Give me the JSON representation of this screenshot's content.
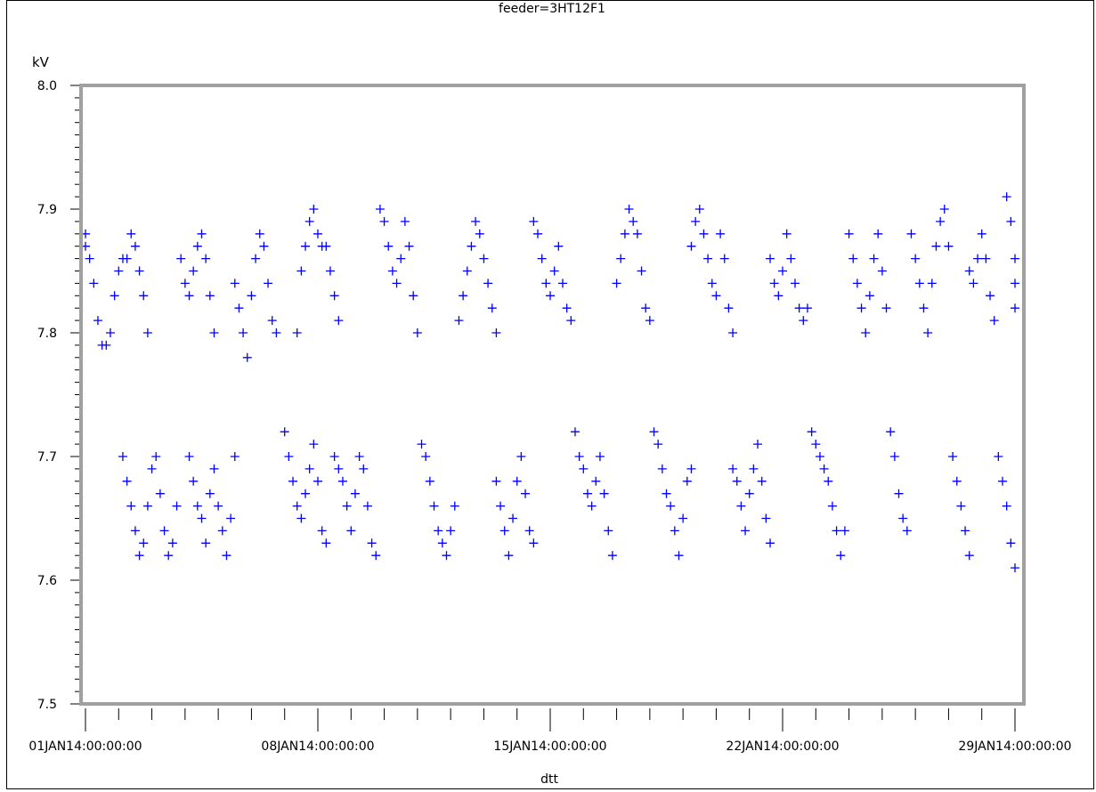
{
  "chart_data": {
    "type": "scatter",
    "title": "feeder=3HT12F1",
    "xlabel": "dtt",
    "ylabel": "kV",
    "ylim": [
      7.5,
      8.0
    ],
    "xlim": [
      "01JAN14:00:00:00",
      "29JAN14:00:00:00"
    ],
    "y_ticks": [
      "7.5",
      "7.6",
      "7.7",
      "7.8",
      "7.9",
      "8.0"
    ],
    "x_tick_labels": [
      "01JAN14:00:00:00",
      "08JAN14:00:00:00",
      "15JAN14:00:00:00",
      "22JAN14:00:00:00",
      "29JAN14:00:00:00"
    ],
    "marker": "+",
    "marker_color": "#0000ff",
    "frame_color": "#a0a0a0",
    "grid": false,
    "series": [
      {
        "points": [
          [
            "01JAN14:00:00:00",
            7.88
          ],
          [
            "01JAN14:00:00:00",
            7.87
          ],
          [
            "01JAN14:03:00:00",
            7.86
          ],
          [
            "01JAN14:06:00:00",
            7.84
          ],
          [
            "01JAN14:09:00:00",
            7.81
          ],
          [
            "01JAN14:12:00:00",
            7.79
          ],
          [
            "01JAN14:15:00:00",
            7.79
          ],
          [
            "01JAN14:18:00:00",
            7.8
          ],
          [
            "01JAN14:21:00:00",
            7.83
          ],
          [
            "02JAN14:00:00:00",
            7.85
          ],
          [
            "02JAN14:03:00:00",
            7.86
          ],
          [
            "02JAN14:06:00:00",
            7.86
          ],
          [
            "02JAN14:09:00:00",
            7.88
          ],
          [
            "02JAN14:12:00:00",
            7.87
          ],
          [
            "02JAN14:15:00:00",
            7.85
          ],
          [
            "02JAN14:18:00:00",
            7.83
          ],
          [
            "02JAN14:21:00:00",
            7.8
          ],
          [
            "02JAN14:03:00:00",
            7.7
          ],
          [
            "02JAN14:06:00:00",
            7.68
          ],
          [
            "02JAN14:09:00:00",
            7.66
          ],
          [
            "02JAN14:12:00:00",
            7.64
          ],
          [
            "02JAN14:15:00:00",
            7.62
          ],
          [
            "02JAN14:18:00:00",
            7.63
          ],
          [
            "02JAN14:21:00:00",
            7.66
          ],
          [
            "03JAN14:00:00:00",
            7.69
          ],
          [
            "03JAN14:03:00:00",
            7.7
          ],
          [
            "03JAN14:06:00:00",
            7.67
          ],
          [
            "03JAN14:09:00:00",
            7.64
          ],
          [
            "03JAN14:12:00:00",
            7.62
          ],
          [
            "03JAN14:15:00:00",
            7.63
          ],
          [
            "03JAN14:18:00:00",
            7.66
          ],
          [
            "03JAN14:21:00:00",
            7.86
          ],
          [
            "04JAN14:00:00:00",
            7.84
          ],
          [
            "04JAN14:03:00:00",
            7.83
          ],
          [
            "04JAN14:06:00:00",
            7.85
          ],
          [
            "04JAN14:09:00:00",
            7.87
          ],
          [
            "04JAN14:12:00:00",
            7.88
          ],
          [
            "04JAN14:15:00:00",
            7.86
          ],
          [
            "04JAN14:18:00:00",
            7.83
          ],
          [
            "04JAN14:21:00:00",
            7.8
          ],
          [
            "04JAN14:03:00:00",
            7.7
          ],
          [
            "04JAN14:06:00:00",
            7.68
          ],
          [
            "04JAN14:09:00:00",
            7.66
          ],
          [
            "04JAN14:12:00:00",
            7.65
          ],
          [
            "04JAN14:15:00:00",
            7.63
          ],
          [
            "04JAN14:18:00:00",
            7.67
          ],
          [
            "04JAN14:21:00:00",
            7.69
          ],
          [
            "05JAN14:00:00:00",
            7.66
          ],
          [
            "05JAN14:03:00:00",
            7.64
          ],
          [
            "05JAN14:06:00:00",
            7.62
          ],
          [
            "05JAN14:09:00:00",
            7.65
          ],
          [
            "05JAN14:12:00:00",
            7.7
          ],
          [
            "05JAN14:12:00:00",
            7.84
          ],
          [
            "05JAN14:15:00:00",
            7.82
          ],
          [
            "05JAN14:18:00:00",
            7.8
          ],
          [
            "05JAN14:21:00:00",
            7.78
          ],
          [
            "06JAN14:00:00:00",
            7.83
          ],
          [
            "06JAN14:03:00:00",
            7.86
          ],
          [
            "06JAN14:06:00:00",
            7.88
          ],
          [
            "06JAN14:09:00:00",
            7.87
          ],
          [
            "06JAN14:12:00:00",
            7.84
          ],
          [
            "06JAN14:15:00:00",
            7.81
          ],
          [
            "06JAN14:18:00:00",
            7.8
          ],
          [
            "07JAN14:00:00:00",
            7.72
          ],
          [
            "07JAN14:03:00:00",
            7.7
          ],
          [
            "07JAN14:06:00:00",
            7.68
          ],
          [
            "07JAN14:09:00:00",
            7.66
          ],
          [
            "07JAN14:12:00:00",
            7.65
          ],
          [
            "07JAN14:15:00:00",
            7.67
          ],
          [
            "07JAN14:18:00:00",
            7.69
          ],
          [
            "07JAN14:21:00:00",
            7.71
          ],
          [
            "08JAN14:00:00:00",
            7.68
          ],
          [
            "08JAN14:03:00:00",
            7.64
          ],
          [
            "08JAN14:06:00:00",
            7.63
          ],
          [
            "07JAN14:09:00:00",
            7.8
          ],
          [
            "07JAN14:12:00:00",
            7.85
          ],
          [
            "07JAN14:15:00:00",
            7.87
          ],
          [
            "07JAN14:18:00:00",
            7.89
          ],
          [
            "07JAN14:21:00:00",
            7.9
          ],
          [
            "08JAN14:00:00:00",
            7.88
          ],
          [
            "08JAN14:03:00:00",
            7.87
          ],
          [
            "08JAN14:06:00:00",
            7.87
          ],
          [
            "08JAN14:09:00:00",
            7.85
          ],
          [
            "08JAN14:12:00:00",
            7.83
          ],
          [
            "08JAN14:15:00:00",
            7.81
          ],
          [
            "08JAN14:12:00:00",
            7.7
          ],
          [
            "08JAN14:15:00:00",
            7.69
          ],
          [
            "08JAN14:18:00:00",
            7.68
          ],
          [
            "08JAN14:21:00:00",
            7.66
          ],
          [
            "09JAN14:00:00:00",
            7.64
          ],
          [
            "09JAN14:03:00:00",
            7.67
          ],
          [
            "09JAN14:06:00:00",
            7.7
          ],
          [
            "09JAN14:09:00:00",
            7.69
          ],
          [
            "09JAN14:12:00:00",
            7.66
          ],
          [
            "09JAN14:15:00:00",
            7.63
          ],
          [
            "09JAN14:18:00:00",
            7.62
          ],
          [
            "09JAN14:21:00:00",
            7.9
          ],
          [
            "10JAN14:00:00:00",
            7.89
          ],
          [
            "10JAN14:03:00:00",
            7.87
          ],
          [
            "10JAN14:06:00:00",
            7.85
          ],
          [
            "10JAN14:09:00:00",
            7.84
          ],
          [
            "10JAN14:12:00:00",
            7.86
          ],
          [
            "10JAN14:15:00:00",
            7.89
          ],
          [
            "10JAN14:18:00:00",
            7.87
          ],
          [
            "10JAN14:21:00:00",
            7.83
          ],
          [
            "11JAN14:00:00:00",
            7.8
          ],
          [
            "11JAN14:03:00:00",
            7.71
          ],
          [
            "11JAN14:06:00:00",
            7.7
          ],
          [
            "11JAN14:09:00:00",
            7.68
          ],
          [
            "11JAN14:12:00:00",
            7.66
          ],
          [
            "11JAN14:15:00:00",
            7.64
          ],
          [
            "11JAN14:18:00:00",
            7.63
          ],
          [
            "11JAN14:21:00:00",
            7.62
          ],
          [
            "12JAN14:00:00:00",
            7.64
          ],
          [
            "12JAN14:03:00:00",
            7.66
          ],
          [
            "12JAN14:06:00:00",
            7.81
          ],
          [
            "12JAN14:09:00:00",
            7.83
          ],
          [
            "12JAN14:12:00:00",
            7.85
          ],
          [
            "12JAN14:15:00:00",
            7.87
          ],
          [
            "12JAN14:18:00:00",
            7.89
          ],
          [
            "12JAN14:21:00:00",
            7.88
          ],
          [
            "13JAN14:00:00:00",
            7.86
          ],
          [
            "13JAN14:03:00:00",
            7.84
          ],
          [
            "13JAN14:06:00:00",
            7.82
          ],
          [
            "13JAN14:09:00:00",
            7.8
          ],
          [
            "13JAN14:09:00:00",
            7.68
          ],
          [
            "13JAN14:12:00:00",
            7.66
          ],
          [
            "13JAN14:15:00:00",
            7.64
          ],
          [
            "13JAN14:18:00:00",
            7.62
          ],
          [
            "13JAN14:21:00:00",
            7.65
          ],
          [
            "14JAN14:00:00:00",
            7.68
          ],
          [
            "14JAN14:03:00:00",
            7.7
          ],
          [
            "14JAN14:06:00:00",
            7.67
          ],
          [
            "14JAN14:09:00:00",
            7.64
          ],
          [
            "14JAN14:12:00:00",
            7.63
          ],
          [
            "14JAN14:12:00:00",
            7.89
          ],
          [
            "14JAN14:15:00:00",
            7.88
          ],
          [
            "14JAN14:18:00:00",
            7.86
          ],
          [
            "14JAN14:21:00:00",
            7.84
          ],
          [
            "15JAN14:00:00:00",
            7.83
          ],
          [
            "15JAN14:03:00:00",
            7.85
          ],
          [
            "15JAN14:06:00:00",
            7.87
          ],
          [
            "15JAN14:09:00:00",
            7.84
          ],
          [
            "15JAN14:12:00:00",
            7.82
          ],
          [
            "15JAN14:15:00:00",
            7.81
          ],
          [
            "15JAN14:18:00:00",
            7.72
          ],
          [
            "15JAN14:21:00:00",
            7.7
          ],
          [
            "16JAN14:00:00:00",
            7.69
          ],
          [
            "16JAN14:03:00:00",
            7.67
          ],
          [
            "16JAN14:06:00:00",
            7.66
          ],
          [
            "16JAN14:09:00:00",
            7.68
          ],
          [
            "16JAN14:12:00:00",
            7.7
          ],
          [
            "16JAN14:15:00:00",
            7.67
          ],
          [
            "16JAN14:18:00:00",
            7.64
          ],
          [
            "16JAN14:21:00:00",
            7.62
          ],
          [
            "17JAN14:00:00:00",
            7.84
          ],
          [
            "17JAN14:03:00:00",
            7.86
          ],
          [
            "17JAN14:06:00:00",
            7.88
          ],
          [
            "17JAN14:09:00:00",
            7.9
          ],
          [
            "17JAN14:12:00:00",
            7.89
          ],
          [
            "17JAN14:15:00:00",
            7.88
          ],
          [
            "17JAN14:18:00:00",
            7.85
          ],
          [
            "17JAN14:21:00:00",
            7.82
          ],
          [
            "18JAN14:00:00:00",
            7.81
          ],
          [
            "18JAN14:03:00:00",
            7.72
          ],
          [
            "18JAN14:06:00:00",
            7.71
          ],
          [
            "18JAN14:09:00:00",
            7.69
          ],
          [
            "18JAN14:12:00:00",
            7.67
          ],
          [
            "18JAN14:15:00:00",
            7.66
          ],
          [
            "18JAN14:18:00:00",
            7.64
          ],
          [
            "18JAN14:21:00:00",
            7.62
          ],
          [
            "19JAN14:00:00:00",
            7.65
          ],
          [
            "19JAN14:03:00:00",
            7.68
          ],
          [
            "19JAN14:06:00:00",
            7.69
          ],
          [
            "19JAN14:06:00:00",
            7.87
          ],
          [
            "19JAN14:09:00:00",
            7.89
          ],
          [
            "19JAN14:12:00:00",
            7.9
          ],
          [
            "19JAN14:15:00:00",
            7.88
          ],
          [
            "19JAN14:18:00:00",
            7.86
          ],
          [
            "19JAN14:21:00:00",
            7.84
          ],
          [
            "20JAN14:00:00:00",
            7.83
          ],
          [
            "20JAN14:03:00:00",
            7.88
          ],
          [
            "20JAN14:06:00:00",
            7.86
          ],
          [
            "20JAN14:09:00:00",
            7.82
          ],
          [
            "20JAN14:12:00:00",
            7.8
          ],
          [
            "20JAN14:12:00:00",
            7.69
          ],
          [
            "20JAN14:15:00:00",
            7.68
          ],
          [
            "20JAN14:18:00:00",
            7.66
          ],
          [
            "20JAN14:21:00:00",
            7.64
          ],
          [
            "21JAN14:00:00:00",
            7.67
          ],
          [
            "21JAN14:03:00:00",
            7.69
          ],
          [
            "21JAN14:06:00:00",
            7.71
          ],
          [
            "21JAN14:09:00:00",
            7.68
          ],
          [
            "21JAN14:12:00:00",
            7.65
          ],
          [
            "21JAN14:15:00:00",
            7.63
          ],
          [
            "21JAN14:15:00:00",
            7.86
          ],
          [
            "21JAN14:18:00:00",
            7.84
          ],
          [
            "21JAN14:21:00:00",
            7.83
          ],
          [
            "22JAN14:00:00:00",
            7.85
          ],
          [
            "22JAN14:03:00:00",
            7.88
          ],
          [
            "22JAN14:06:00:00",
            7.86
          ],
          [
            "22JAN14:09:00:00",
            7.84
          ],
          [
            "22JAN14:12:00:00",
            7.82
          ],
          [
            "22JAN14:15:00:00",
            7.81
          ],
          [
            "22JAN14:18:00:00",
            7.82
          ],
          [
            "22JAN14:21:00:00",
            7.72
          ],
          [
            "23JAN14:00:00:00",
            7.71
          ],
          [
            "23JAN14:03:00:00",
            7.7
          ],
          [
            "23JAN14:06:00:00",
            7.69
          ],
          [
            "23JAN14:09:00:00",
            7.68
          ],
          [
            "23JAN14:12:00:00",
            7.66
          ],
          [
            "23JAN14:15:00:00",
            7.64
          ],
          [
            "23JAN14:18:00:00",
            7.62
          ],
          [
            "23JAN14:21:00:00",
            7.64
          ],
          [
            "24JAN14:00:00:00",
            7.88
          ],
          [
            "24JAN14:03:00:00",
            7.86
          ],
          [
            "24JAN14:06:00:00",
            7.84
          ],
          [
            "24JAN14:09:00:00",
            7.82
          ],
          [
            "24JAN14:12:00:00",
            7.8
          ],
          [
            "24JAN14:15:00:00",
            7.83
          ],
          [
            "24JAN14:18:00:00",
            7.86
          ],
          [
            "24JAN14:21:00:00",
            7.88
          ],
          [
            "25JAN14:00:00:00",
            7.85
          ],
          [
            "25JAN14:03:00:00",
            7.82
          ],
          [
            "25JAN14:06:00:00",
            7.72
          ],
          [
            "25JAN14:09:00:00",
            7.7
          ],
          [
            "25JAN14:12:00:00",
            7.67
          ],
          [
            "25JAN14:15:00:00",
            7.65
          ],
          [
            "25JAN14:18:00:00",
            7.64
          ],
          [
            "25JAN14:21:00:00",
            7.88
          ],
          [
            "26JAN14:00:00:00",
            7.86
          ],
          [
            "26JAN14:03:00:00",
            7.84
          ],
          [
            "26JAN14:06:00:00",
            7.82
          ],
          [
            "26JAN14:09:00:00",
            7.8
          ],
          [
            "26JAN14:12:00:00",
            7.84
          ],
          [
            "26JAN14:15:00:00",
            7.87
          ],
          [
            "26JAN14:18:00:00",
            7.89
          ],
          [
            "26JAN14:21:00:00",
            7.9
          ],
          [
            "27JAN14:00:00:00",
            7.87
          ],
          [
            "27JAN14:03:00:00",
            7.7
          ],
          [
            "27JAN14:06:00:00",
            7.68
          ],
          [
            "27JAN14:09:00:00",
            7.66
          ],
          [
            "27JAN14:12:00:00",
            7.64
          ],
          [
            "27JAN14:15:00:00",
            7.62
          ],
          [
            "27JAN14:15:00:00",
            7.85
          ],
          [
            "27JAN14:18:00:00",
            7.84
          ],
          [
            "27JAN14:21:00:00",
            7.86
          ],
          [
            "28JAN14:00:00:00",
            7.88
          ],
          [
            "28JAN14:03:00:00",
            7.86
          ],
          [
            "28JAN14:06:00:00",
            7.83
          ],
          [
            "28JAN14:09:00:00",
            7.81
          ],
          [
            "28JAN14:12:00:00",
            7.7
          ],
          [
            "28JAN14:15:00:00",
            7.68
          ],
          [
            "28JAN14:18:00:00",
            7.66
          ],
          [
            "28JAN14:21:00:00",
            7.63
          ],
          [
            "29JAN14:00:00:00",
            7.61
          ],
          [
            "28JAN14:18:00:00",
            7.91
          ],
          [
            "28JAN14:21:00:00",
            7.89
          ],
          [
            "29JAN14:00:00:00",
            7.86
          ],
          [
            "29JAN14:00:00:00",
            7.84
          ],
          [
            "29JAN14:00:00:00",
            7.82
          ]
        ]
      }
    ]
  }
}
